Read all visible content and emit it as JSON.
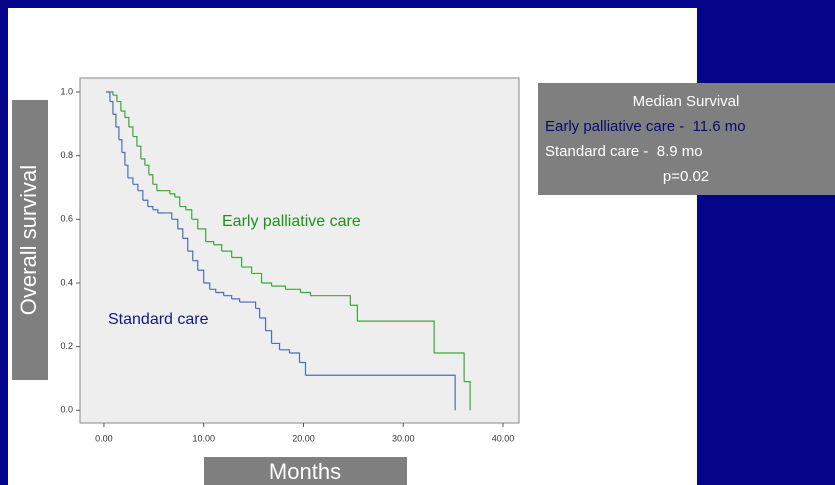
{
  "chart_data": {
    "type": "step",
    "x_label": "Months",
    "y_label": "Overall survival",
    "xlim": [
      -2.4,
      41.6
    ],
    "ylim": [
      -0.04,
      1.044
    ],
    "xticks": [
      {
        "value": 0,
        "label": "0.00"
      },
      {
        "value": 10,
        "label": "10.00"
      },
      {
        "value": 20,
        "label": "20.00"
      },
      {
        "value": 30,
        "label": "30.00"
      },
      {
        "value": 40,
        "label": "40.00"
      }
    ],
    "yticks": [
      {
        "value": 0,
        "label": "0.0"
      },
      {
        "value": 0.2,
        "label": "0.2"
      },
      {
        "value": 0.4,
        "label": "0.4"
      },
      {
        "value": 0.6,
        "label": "0.6"
      },
      {
        "value": 0.8,
        "label": "0.8"
      },
      {
        "value": 1.0,
        "label": "1.0"
      }
    ],
    "series": [
      {
        "name": "Early palliative care",
        "color": "#3aa83a",
        "x": [
          0.4,
          0.9,
          1.3,
          1.7,
          2.1,
          2.5,
          2.9,
          3.3,
          3.7,
          4.1,
          4.5,
          4.9,
          5.3,
          5.9,
          6.6,
          7.1,
          7.6,
          8.2,
          8.8,
          9.4,
          10.2,
          11.0,
          11.8,
          12.8,
          13.8,
          14.8,
          15.8,
          16.8,
          18.2,
          19.7,
          20.7,
          24.2,
          24.7,
          25.4,
          33.1,
          36.1,
          36.7
        ],
        "values": [
          1.0,
          0.99,
          0.97,
          0.94,
          0.92,
          0.89,
          0.86,
          0.83,
          0.79,
          0.77,
          0.74,
          0.71,
          0.69,
          0.69,
          0.68,
          0.67,
          0.64,
          0.63,
          0.6,
          0.57,
          0.53,
          0.52,
          0.5,
          0.48,
          0.45,
          0.43,
          0.4,
          0.39,
          0.38,
          0.37,
          0.36,
          0.36,
          0.33,
          0.28,
          0.18,
          0.09,
          0.0
        ]
      },
      {
        "name": "Standard care",
        "color": "#4a6fb5",
        "x": [
          0.2,
          0.6,
          0.9,
          1.2,
          1.5,
          1.8,
          2.1,
          2.4,
          2.9,
          3.4,
          3.9,
          4.4,
          4.9,
          5.4,
          6.1,
          6.8,
          7.4,
          7.9,
          8.4,
          8.9,
          9.4,
          10.0,
          10.6,
          11.2,
          12.0,
          12.8,
          13.6,
          14.6,
          15.2,
          15.6,
          16.2,
          16.8,
          17.6,
          18.6,
          19.6,
          20.2,
          35.2
        ],
        "values": [
          1.0,
          0.97,
          0.93,
          0.89,
          0.85,
          0.81,
          0.77,
          0.73,
          0.71,
          0.69,
          0.66,
          0.64,
          0.63,
          0.62,
          0.62,
          0.6,
          0.57,
          0.54,
          0.5,
          0.47,
          0.44,
          0.4,
          0.38,
          0.37,
          0.36,
          0.35,
          0.34,
          0.34,
          0.32,
          0.29,
          0.25,
          0.21,
          0.19,
          0.18,
          0.15,
          0.11,
          0.0
        ]
      }
    ]
  },
  "median_survival": {
    "title": "Median Survival",
    "early": "Early palliative care -  11.6 mo",
    "standard": "Standard care -  8.9 mo",
    "p": "p=0.02"
  }
}
